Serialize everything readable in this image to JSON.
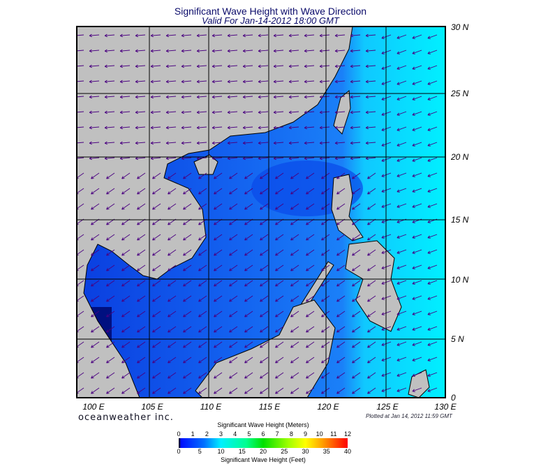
{
  "title": "Significant Wave Height with Wave Direction",
  "subtitle": "Valid For Jan-14-2012 18:00 GMT",
  "lat_labels": [
    "30 N",
    "25 N",
    "20 N",
    "15 N",
    "10 N",
    "5 N",
    "0"
  ],
  "lon_labels": [
    "100 E",
    "105 E",
    "110 E",
    "115 E",
    "120 E",
    "125 E",
    "130 E"
  ],
  "brand": "oceanweather inc.",
  "plotted": "Plotted at Jan 14, 2012 11:59 GMT",
  "legend": {
    "meters_title": "Significant Wave Height (Meters)",
    "meters_ticks": [
      "0",
      "1",
      "2",
      "3",
      "4",
      "5",
      "6",
      "7",
      "8",
      "9",
      "10",
      "11",
      "12"
    ],
    "feet_title": "Significant Wave Height (Feet)",
    "feet_ticks": [
      "0",
      "5",
      "10",
      "15",
      "20",
      "25",
      "30",
      "35",
      "40"
    ]
  },
  "colors": {
    "land": "#c0c0c0",
    "sea_mid": "#1464f0",
    "sea_low": "#0a3ee0",
    "sea_high": "#00e8ff",
    "arrow": "#4a0080"
  }
}
